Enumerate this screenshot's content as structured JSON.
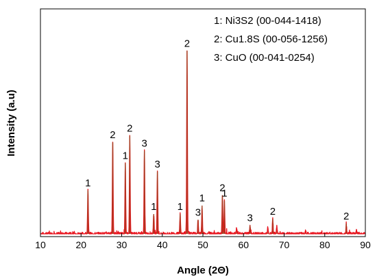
{
  "chart_data": {
    "type": "line",
    "xlabel": "Angle (2Θ)",
    "ylabel": "Intensity (a.u)",
    "xlim": [
      10,
      90
    ],
    "xticks": [
      10,
      20,
      30,
      40,
      50,
      60,
      70,
      80,
      90
    ],
    "legend_position": "top-right",
    "legend": [
      "1: Ni3S2 (00-044-1418)",
      "2: Cu1.8S (00-056-1256)",
      "3: CuO (00-041-0254)"
    ],
    "line_color": "#e8141e",
    "shade_color": "#a04020",
    "peaks": [
      {
        "x": 21.7,
        "y": 0.23,
        "label": "1"
      },
      {
        "x": 27.8,
        "y": 0.485,
        "label": "2"
      },
      {
        "x": 30.9,
        "y": 0.375,
        "label": "1"
      },
      {
        "x": 32.0,
        "y": 0.52,
        "label": "2"
      },
      {
        "x": 35.6,
        "y": 0.44,
        "label": "3"
      },
      {
        "x": 37.9,
        "y": 0.105,
        "label": "1"
      },
      {
        "x": 38.8,
        "y": 0.33,
        "label": "3"
      },
      {
        "x": 44.4,
        "y": 0.105,
        "label": "1"
      },
      {
        "x": 46.1,
        "y": 0.97,
        "label": "2"
      },
      {
        "x": 48.8,
        "y": 0.075,
        "label": "3"
      },
      {
        "x": 49.8,
        "y": 0.15,
        "label": "1"
      },
      {
        "x": 54.8,
        "y": 0.205,
        "label": "2"
      },
      {
        "x": 55.3,
        "y": 0.175,
        "label": "1"
      },
      {
        "x": 61.6,
        "y": 0.045,
        "label": "3"
      },
      {
        "x": 67.2,
        "y": 0.08,
        "label": "2"
      },
      {
        "x": 85.3,
        "y": 0.055,
        "label": "2"
      }
    ],
    "minor_peaks": [
      {
        "x": 58.3,
        "y": 0.03
      },
      {
        "x": 66.0,
        "y": 0.04
      },
      {
        "x": 68.2,
        "y": 0.04
      },
      {
        "x": 75.3,
        "y": 0.02
      },
      {
        "x": 87.8,
        "y": 0.015
      }
    ]
  }
}
